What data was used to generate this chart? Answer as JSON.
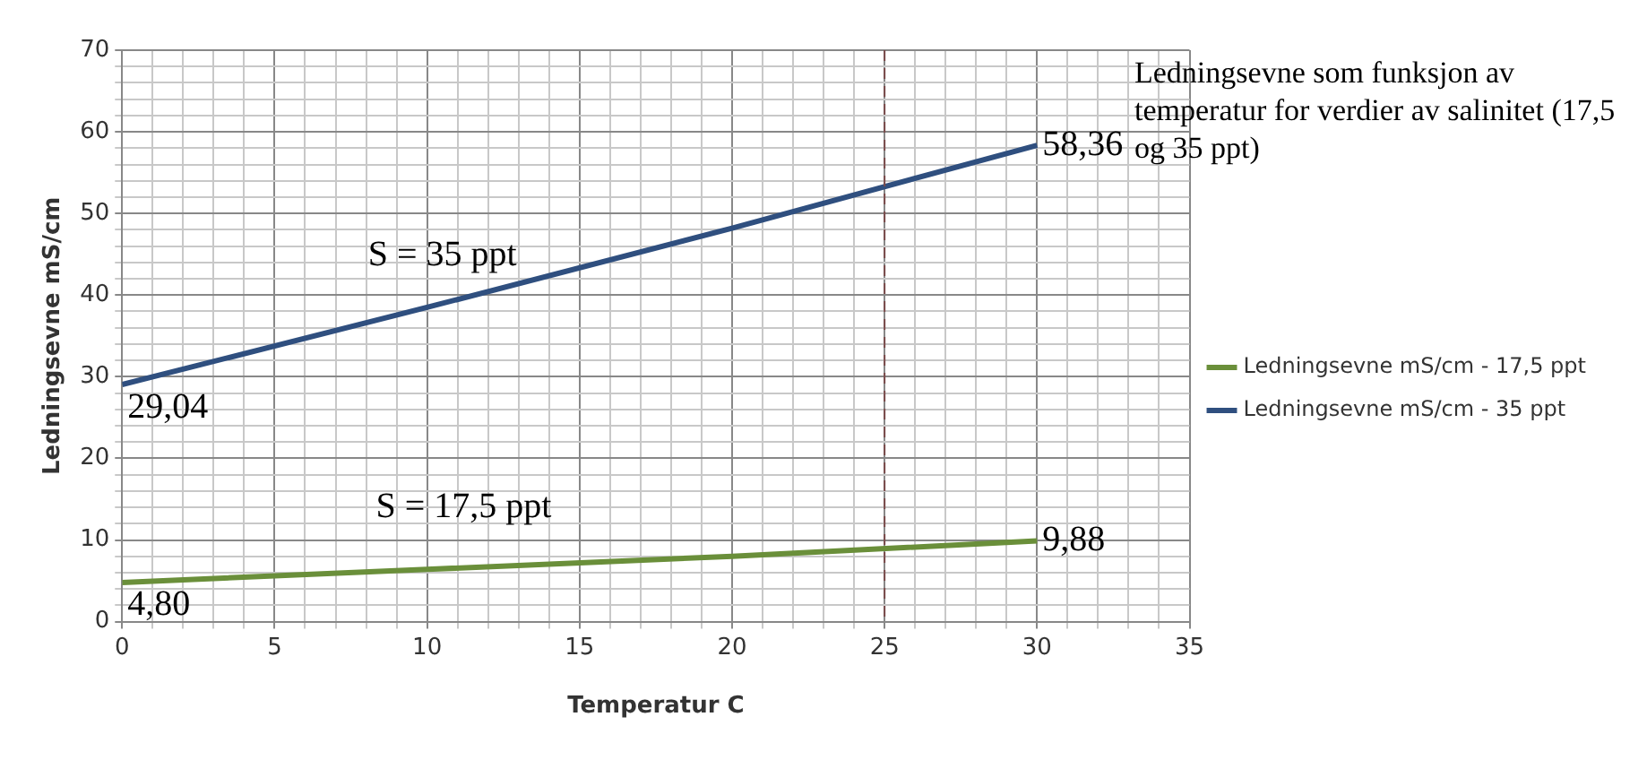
{
  "chart_data": {
    "type": "line",
    "title": "Ledningsevne som funksjon av temperatur for verdier av salinitet (17,5 og 35 ppt)",
    "xlabel": "Temperatur C",
    "ylabel": "Ledningsevne mS/cm",
    "x": [
      0,
      10,
      20,
      30
    ],
    "series": [
      {
        "name": "Ledningsevne mS/cm - 17,5 ppt",
        "color": "#6a8f3a",
        "values": [
          4.8,
          6.4,
          8.0,
          9.88
        ],
        "value_labels": [
          "4,80",
          null,
          null,
          "9,88"
        ]
      },
      {
        "name": "Ledningsevne mS/cm - 35 ppt",
        "color": "#2f4f7f",
        "values": [
          29.04,
          38.5,
          48.2,
          58.36
        ],
        "value_labels": [
          "29,04",
          null,
          null,
          "58,36"
        ]
      }
    ],
    "xlim": [
      0,
      35
    ],
    "xticks": [
      0,
      {
        "value": 1,
        "label": null
      },
      {
        "value": 2,
        "label": null
      },
      {
        "value": 3,
        "label": null
      },
      {
        "value": 4,
        "label": null
      },
      5,
      {
        "value": 6,
        "label": null
      },
      {
        "value": 7,
        "label": null
      },
      {
        "value": 8,
        "label": null
      },
      {
        "value": 9,
        "label": null
      },
      10,
      {
        "value": 11,
        "label": null
      },
      {
        "value": 12,
        "label": null
      },
      {
        "value": 13,
        "label": null
      },
      {
        "value": 14,
        "label": null
      },
      15,
      {
        "value": 16,
        "label": null
      },
      {
        "value": 17,
        "label": null
      },
      {
        "value": 18,
        "label": null
      },
      {
        "value": 19,
        "label": null
      },
      20,
      {
        "value": 21,
        "label": null
      },
      {
        "value": 22,
        "label": null
      },
      {
        "value": 23,
        "label": null
      },
      {
        "value": 24,
        "label": null
      },
      25,
      {
        "value": 26,
        "label": null
      },
      {
        "value": 27,
        "label": null
      },
      {
        "value": 28,
        "label": null
      },
      {
        "value": 29,
        "label": null
      },
      30,
      {
        "value": 31,
        "label": null
      },
      {
        "value": 32,
        "label": null
      },
      {
        "value": 33,
        "label": null
      },
      {
        "value": 34,
        "label": null
      },
      35
    ],
    "ylim": [
      0,
      70
    ],
    "yticks": [
      0,
      {
        "value": 2,
        "label": null
      },
      {
        "value": 4,
        "label": null
      },
      {
        "value": 6,
        "label": null
      },
      {
        "value": 8,
        "label": null
      },
      10,
      {
        "value": 12,
        "label": null
      },
      {
        "value": 14,
        "label": null
      },
      {
        "value": 16,
        "label": null
      },
      {
        "value": 18,
        "label": null
      },
      20,
      {
        "value": 22,
        "label": null
      },
      {
        "value": 24,
        "label": null
      },
      {
        "value": 26,
        "label": null
      },
      {
        "value": 28,
        "label": null
      },
      30,
      {
        "value": 32,
        "label": null
      },
      {
        "value": 34,
        "label": null
      },
      {
        "value": 36,
        "label": null
      },
      {
        "value": 38,
        "label": null
      },
      40,
      {
        "value": 42,
        "label": null
      },
      {
        "value": 44,
        "label": null
      },
      {
        "value": 46,
        "label": null
      },
      {
        "value": 48,
        "label": null
      },
      50,
      {
        "value": 52,
        "label": null
      },
      {
        "value": 54,
        "label": null
      },
      {
        "value": 56,
        "label": null
      },
      {
        "value": 58,
        "label": null
      },
      60,
      {
        "value": 62,
        "label": null
      },
      {
        "value": 64,
        "label": null
      },
      {
        "value": 66,
        "label": null
      },
      {
        "value": 68,
        "label": null
      },
      70
    ],
    "ref_lines": [
      {
        "axis": "x",
        "value": 25,
        "color": "#7a4a4a",
        "line_style": "dashed"
      }
    ],
    "annotations": [
      "S = 35 ppt",
      "S = 17,5 ppt"
    ],
    "grid": true,
    "legend": "right",
    "marker": "none",
    "line_style": "solid"
  }
}
